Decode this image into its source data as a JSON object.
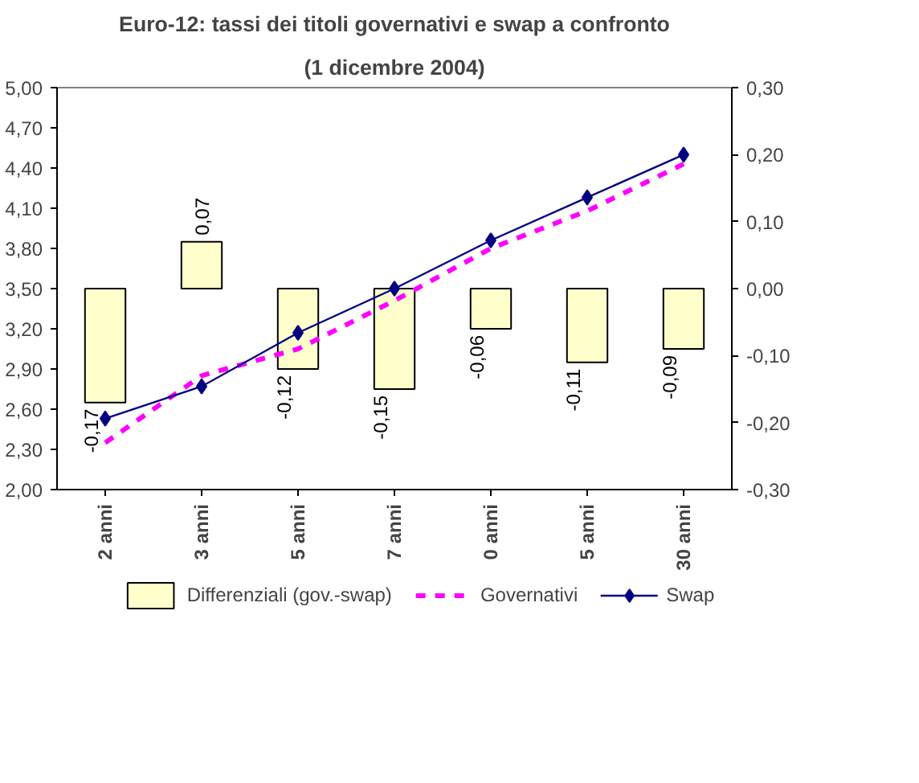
{
  "chart_data": {
    "type": "bar",
    "title": "Euro-12: tassi dei titoli governativi e swap a confronto",
    "subtitle": "(1 dicembre 2004)",
    "categories": [
      "2 anni",
      "3 anni",
      "5 anni",
      "7 anni",
      "0 anni",
      "5 anni",
      "30 anni"
    ],
    "series": [
      {
        "name": "Differenziali (gov.-swap)",
        "axis": "y2",
        "color": "#ffffcc",
        "values": [
          -0.17,
          0.07,
          -0.12,
          -0.15,
          -0.06,
          -0.11,
          -0.09
        ],
        "value_labels": [
          "-0,17",
          "0,07",
          "-0,12",
          "-0,15",
          "-0,06",
          "-0,11",
          "-0,09"
        ]
      },
      {
        "name": "Governativi",
        "type": "line",
        "color": "#ff00ff",
        "line_style": "dashed",
        "marker": "none",
        "values": [
          2.35,
          2.85,
          3.05,
          3.41,
          3.8,
          4.08,
          4.43
        ]
      },
      {
        "name": "Swap",
        "type": "line",
        "color": "#000080",
        "line_style": "solid",
        "marker": "diamond",
        "values": [
          2.53,
          2.77,
          3.17,
          3.5,
          3.86,
          4.18,
          4.5
        ]
      }
    ],
    "ylim": [
      2,
      5
    ],
    "yticks": [
      {
        "value": 2,
        "label": "2,00"
      },
      {
        "value": 2.3,
        "label": "2,30"
      },
      {
        "value": 2.6,
        "label": "2,60"
      },
      {
        "value": 2.9,
        "label": "2,90"
      },
      {
        "value": 3.2,
        "label": "3,20"
      },
      {
        "value": 3.5,
        "label": "3,50"
      },
      {
        "value": 3.8,
        "label": "3,80"
      },
      {
        "value": 4.1,
        "label": "4,10"
      },
      {
        "value": 4.4,
        "label": "4,40"
      },
      {
        "value": 4.7,
        "label": "4,70"
      },
      {
        "value": 5,
        "label": "5,00"
      }
    ],
    "y2lim": [
      -0.3,
      0.3
    ],
    "y2ticks": [
      {
        "value": -0.3,
        "label": "-0,30"
      },
      {
        "value": -0.2,
        "label": "-0,20"
      },
      {
        "value": -0.1,
        "label": "-0,10"
      },
      {
        "value": 0,
        "label": "0,00"
      },
      {
        "value": 0.1,
        "label": "0,10"
      },
      {
        "value": 0.2,
        "label": "0,20"
      },
      {
        "value": 0.3,
        "label": "0,30"
      }
    ],
    "grid": false,
    "legend": "bottom"
  }
}
